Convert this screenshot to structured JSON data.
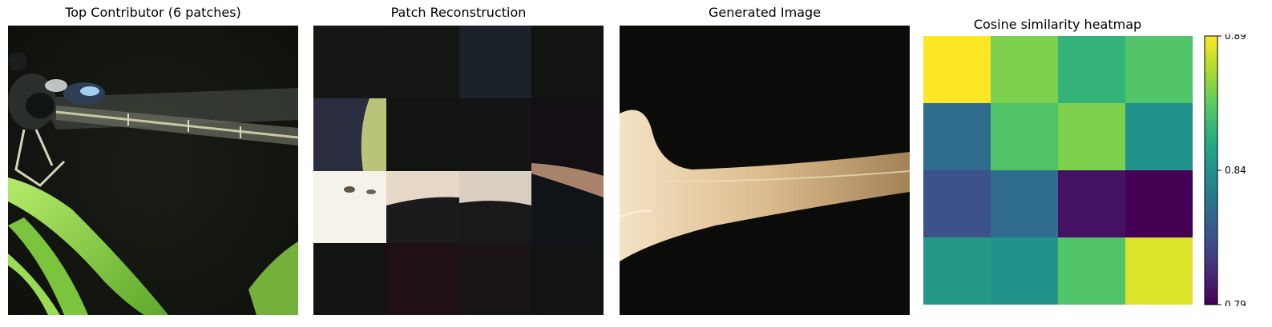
{
  "panels": {
    "contributor": {
      "title": "Top Contributor (6 patches)"
    },
    "reconstruction": {
      "title": "Patch Reconstruction"
    },
    "generated": {
      "title": "Generated Image"
    },
    "heatmap": {
      "title": "Cosine similarity heatmap"
    }
  },
  "chart_data": {
    "type": "heatmap",
    "title": "Cosine similarity heatmap",
    "rows": 4,
    "cols": 4,
    "values": [
      [
        0.89,
        0.87,
        0.855,
        0.862
      ],
      [
        0.825,
        0.862,
        0.87,
        0.84
      ],
      [
        0.815,
        0.825,
        0.795,
        0.79
      ],
      [
        0.843,
        0.841,
        0.862,
        0.885
      ]
    ],
    "colormap": "viridis",
    "colorbar": {
      "min": 0.79,
      "max": 0.89,
      "ticks": [
        "0.79",
        "0.84",
        "0.89"
      ]
    }
  },
  "images": {
    "contributor": "damselfly-close-up-on-green-grass",
    "reconstruction": "4x4-patch-mosaic",
    "generated": "tan-leaf-on-black-background"
  },
  "colors": {
    "background_dark": "#0f120c",
    "grass_green": "#8ed24a",
    "leaf_tan": "#d9b98a"
  }
}
